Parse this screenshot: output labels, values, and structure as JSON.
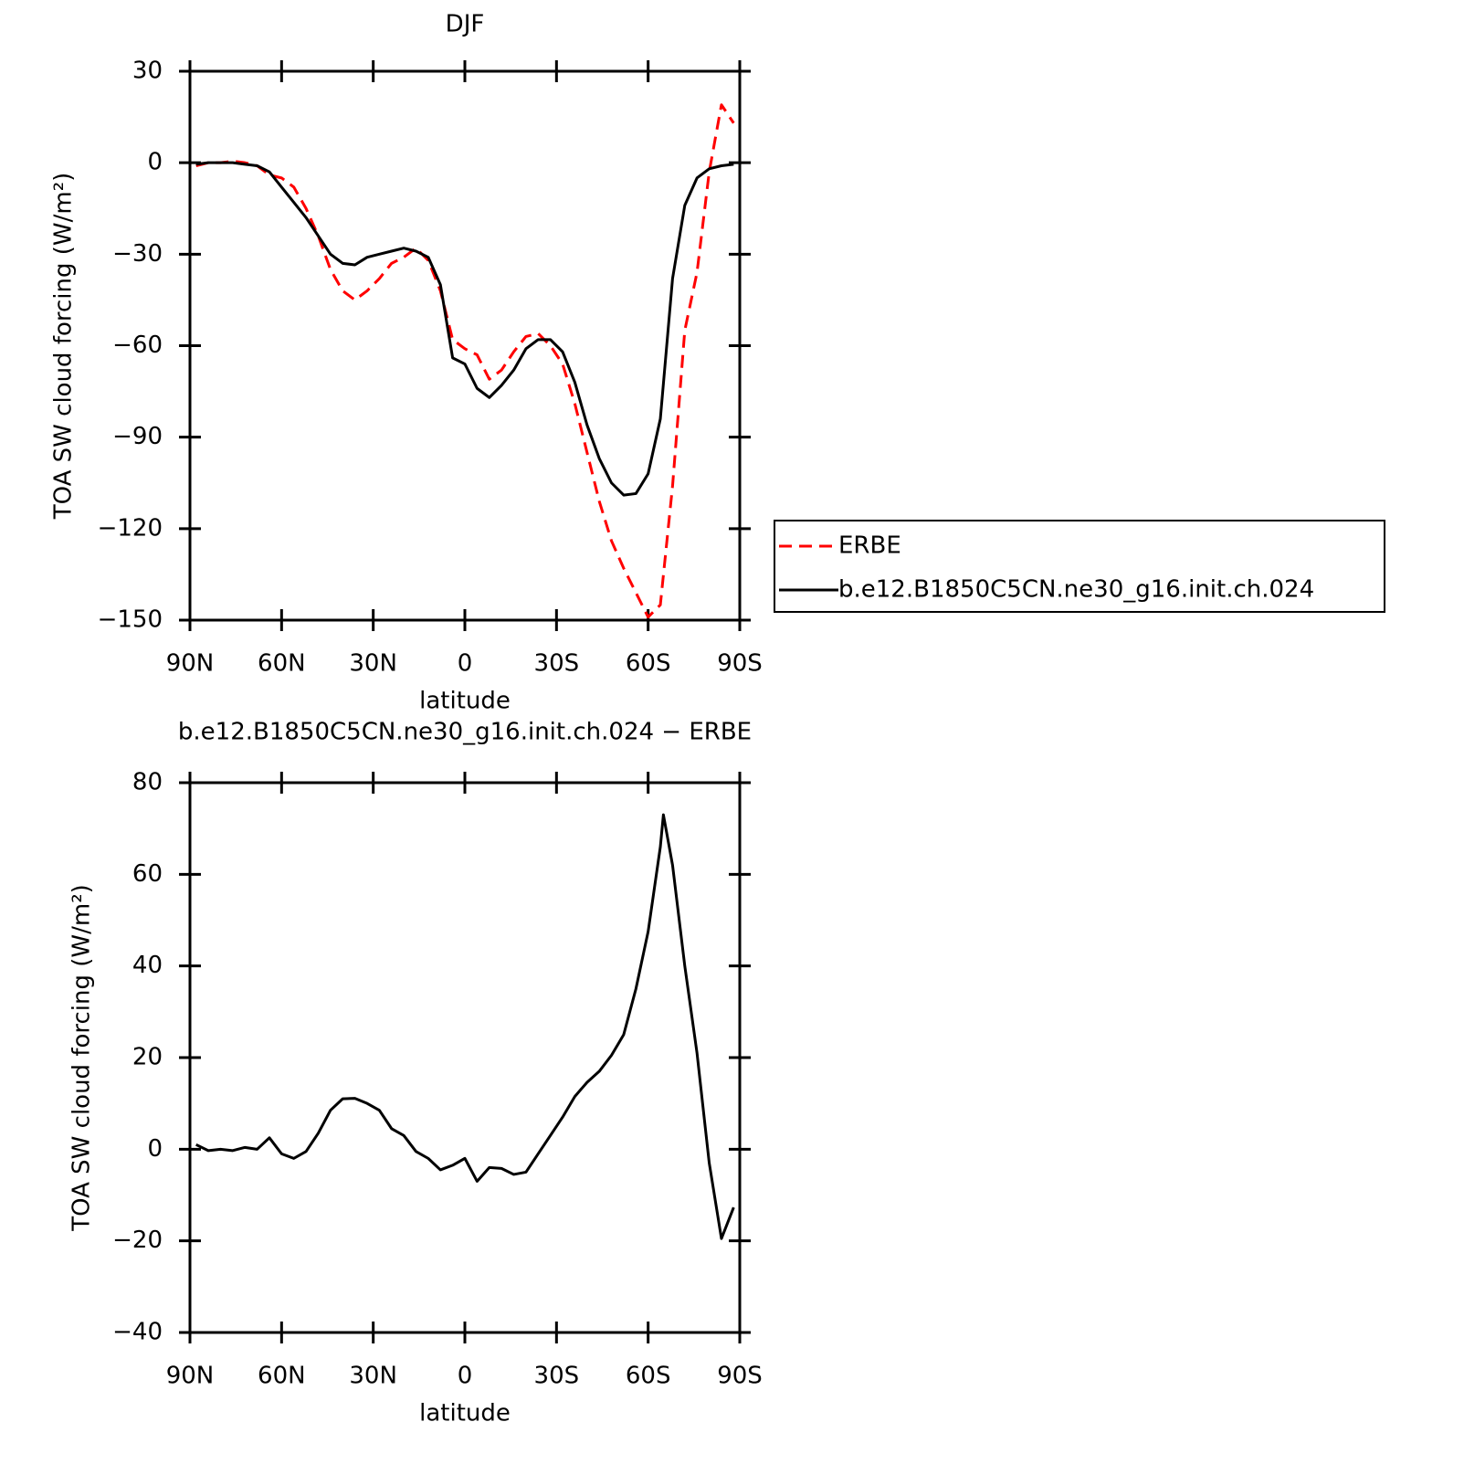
{
  "chart_data": [
    {
      "type": "line",
      "title": "DJF",
      "xlabel": "latitude",
      "ylabel": "TOA SW cloud forcing (W/m²)",
      "x": [
        88,
        84,
        80,
        76,
        72,
        68,
        64,
        60,
        56,
        52,
        48,
        44,
        40,
        36,
        32,
        28,
        24,
        20,
        16,
        12,
        8,
        4,
        0,
        -4,
        -8,
        -12,
        -16,
        -20,
        -24,
        -28,
        -32,
        -36,
        -40,
        -44,
        -48,
        -52,
        -56,
        -60,
        -64,
        -68,
        -72,
        -76,
        -80,
        -84,
        -88
      ],
      "xlim": [
        90,
        -90
      ],
      "xticks": [
        {
          "value": 90,
          "label": "90N"
        },
        {
          "value": 60,
          "label": "60N"
        },
        {
          "value": 30,
          "label": "30N"
        },
        0,
        {
          "value": -30,
          "label": "30S"
        },
        {
          "value": -60,
          "label": "60S"
        },
        {
          "value": -90,
          "label": "90S"
        }
      ],
      "ylim": [
        -150,
        30
      ],
      "yticks": [
        30,
        0,
        {
          "value": -30,
          "label": "−30"
        },
        {
          "value": -60,
          "label": "−60"
        },
        {
          "value": -90,
          "label": "−90"
        },
        {
          "value": -120,
          "label": "−120"
        },
        {
          "value": -150,
          "label": "−150"
        }
      ],
      "legend": "right",
      "series": [
        {
          "name": "ERBE",
          "color": "#ff0000",
          "linestyle": "dashed",
          "values": [
            -1,
            0,
            0,
            0.5,
            0,
            -1,
            -4,
            -5,
            -8,
            -15,
            -24,
            -35,
            -42,
            -45,
            -42,
            -38,
            -33,
            -31,
            -28,
            -32,
            -42,
            -58,
            -61,
            -63,
            -71,
            -68,
            -62,
            -57,
            -56,
            -60,
            -66,
            -79,
            -95,
            -111,
            -124,
            -133,
            -141,
            -149,
            -145,
            -106,
            -55,
            -36,
            -3,
            19,
            13
          ]
        },
        {
          "name": "b.e12.B1850C5CN.ne30_g16.init.ch.024",
          "color": "#000000",
          "linestyle": "solid",
          "values": [
            -0.5,
            0,
            0,
            0,
            -0.5,
            -1,
            -3,
            -8,
            -13,
            -18,
            -24,
            -30,
            -33,
            -33.5,
            -31,
            -30,
            -29,
            -28,
            -29,
            -31,
            -40,
            -64,
            -66,
            -74,
            -77,
            -73,
            -68,
            -61,
            -58,
            -58,
            -62,
            -72,
            -86,
            -97,
            -105,
            -109,
            -108.5,
            -102,
            -84,
            -38,
            -14,
            -5,
            -2,
            -1,
            -0.5
          ]
        }
      ]
    },
    {
      "type": "line",
      "title": "b.e12.B1850C5CN.ne30_g16.init.ch.024 − ERBE",
      "xlabel": "latitude",
      "ylabel": "TOA SW cloud forcing (W/m²)",
      "x": [
        88,
        84,
        80,
        76,
        72,
        68,
        64,
        60,
        56,
        52,
        48,
        44,
        40,
        36,
        32,
        28,
        24,
        20,
        16,
        12,
        8,
        4,
        0,
        -4,
        -8,
        -12,
        -16,
        -20,
        -24,
        -28,
        -32,
        -36,
        -40,
        -44,
        -48,
        -52,
        -56,
        -60,
        -64,
        -65,
        -68,
        -72,
        -76,
        -80,
        -84,
        -88
      ],
      "xlim": [
        90,
        -90
      ],
      "xticks": [
        {
          "value": 90,
          "label": "90N"
        },
        {
          "value": 60,
          "label": "60N"
        },
        {
          "value": 30,
          "label": "30N"
        },
        0,
        {
          "value": -30,
          "label": "30S"
        },
        {
          "value": -60,
          "label": "60S"
        },
        {
          "value": -90,
          "label": "90S"
        }
      ],
      "ylim": [
        -40,
        80
      ],
      "yticks": [
        80,
        60,
        40,
        20,
        0,
        {
          "value": -20,
          "label": "−20"
        },
        {
          "value": -40,
          "label": "−40"
        }
      ],
      "series": [
        {
          "color": "#000000",
          "linestyle": "solid",
          "values": [
            1,
            -0.3,
            0,
            -0.3,
            0.4,
            0,
            2.5,
            -1,
            -2,
            -0.5,
            3.5,
            8.5,
            11,
            11.1,
            10,
            8.5,
            4.5,
            3,
            -0.5,
            -2,
            -4.5,
            -3.5,
            -2,
            -7,
            -4,
            -4.2,
            -5.5,
            -5,
            -1,
            3,
            7,
            11.5,
            14.6,
            17,
            20.5,
            25,
            35,
            47.5,
            66,
            73,
            62,
            40,
            21,
            -3,
            -19.5,
            -12.7
          ]
        }
      ]
    }
  ]
}
